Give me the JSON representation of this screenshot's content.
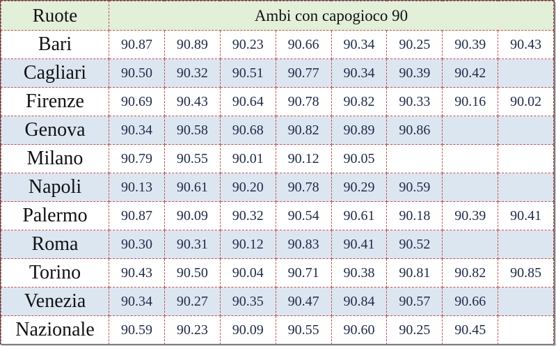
{
  "table": {
    "header": [
      "Ruote",
      "Ambi con capogioco 90"
    ],
    "rows": [
      {
        "label": "Bari",
        "values": [
          "90.87",
          "90.89",
          "90.23",
          "90.66",
          "90.34",
          "90.25",
          "90.39",
          "90.43"
        ]
      },
      {
        "label": "Cagliari",
        "values": [
          "90.50",
          "90.32",
          "90.51",
          "90.77",
          "90.34",
          "90.39",
          "90.42"
        ]
      },
      {
        "label": "Firenze",
        "values": [
          "90.69",
          "90.43",
          "90.64",
          "90.78",
          "90.82",
          "90.33",
          "90.16",
          "90.02"
        ]
      },
      {
        "label": "Genova",
        "values": [
          "90.34",
          "90.58",
          "90.68",
          "90.82",
          "90.89",
          "90.86"
        ]
      },
      {
        "label": "Milano",
        "values": [
          "90.79",
          "90.55",
          "90.01",
          "90.12",
          "90.05"
        ]
      },
      {
        "label": "Napoli",
        "values": [
          "90.13",
          "90.61",
          "90.20",
          "90.78",
          "90.29",
          "90.59"
        ]
      },
      {
        "label": "Palermo",
        "values": [
          "90.87",
          "90.09",
          "90.32",
          "90.54",
          "90.61",
          "90.18",
          "90.39",
          "90.41"
        ]
      },
      {
        "label": "Roma",
        "values": [
          "90.30",
          "90.31",
          "90.12",
          "90.83",
          "90.41",
          "90.52"
        ]
      },
      {
        "label": "Torino",
        "values": [
          "90.43",
          "90.50",
          "90.04",
          "90.71",
          "90.38",
          "90.81",
          "90.82",
          "90.85"
        ]
      },
      {
        "label": "Venezia",
        "values": [
          "90.34",
          "90.27",
          "90.35",
          "90.47",
          "90.84",
          "90.57",
          "90.66"
        ]
      },
      {
        "label": "Nazionale",
        "values": [
          "90.59",
          "90.23",
          "90.09",
          "90.55",
          "90.60",
          "90.25",
          "90.45"
        ]
      }
    ]
  }
}
